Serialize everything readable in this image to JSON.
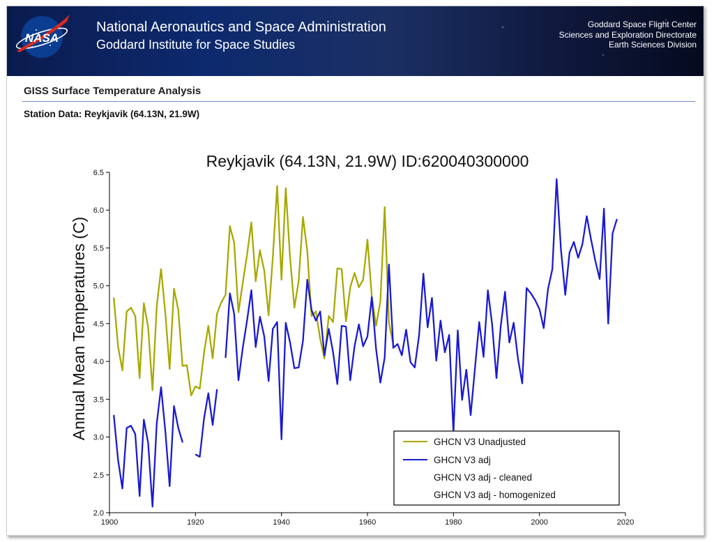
{
  "header": {
    "logo_text": "NASA",
    "org_line1": "National Aeronautics and Space Administration",
    "org_line2": "Goddard Institute for Space Studies",
    "right_line1": "Goddard Space Flight Center",
    "right_line2": "Sciences and Exploration Directorate",
    "right_line3": "Earth Sciences Division"
  },
  "page": {
    "heading": "GISS Surface Temperature Analysis",
    "subheading": "Station Data: Reykjavik (64.13N, 21.9W)"
  },
  "colors": {
    "banner": "#0d2a6e",
    "unadjusted": "#a8a800",
    "adj": "#1a1ad0",
    "rule": "#6f86c6"
  },
  "chart_data": {
    "type": "line",
    "title": "Reykjavik (64.13N, 21.9W) ID:620040300000",
    "xlabel": "",
    "ylabel": "Annual Mean Temperatures (C)",
    "xlim": [
      1900,
      2020
    ],
    "ylim": [
      2.0,
      6.5
    ],
    "x_ticks": [
      "1900",
      "1920",
      "1940",
      "1960",
      "1980",
      "2000",
      "2020"
    ],
    "y_ticks": [
      "2.0",
      "2.5",
      "3.0",
      "3.5",
      "4.0",
      "4.5",
      "5.0",
      "5.5",
      "6.0",
      "6.5"
    ],
    "legend_position": "bottom-right",
    "legend": [
      "GHCN V3 Unadjusted",
      "GHCN V3 adj",
      "GHCN V3 adj - cleaned",
      "GHCN V3 adj - homogenized"
    ],
    "series": [
      {
        "name": "GHCN V3 Unadjusted",
        "color": "#a8a800",
        "segments": [
          [
            [
              1901,
              4.84
            ],
            [
              1902,
              4.2
            ],
            [
              1903,
              3.88
            ],
            [
              1904,
              4.66
            ],
            [
              1905,
              4.71
            ],
            [
              1906,
              4.6
            ],
            [
              1907,
              3.78
            ],
            [
              1908,
              4.77
            ],
            [
              1909,
              4.45
            ],
            [
              1910,
              3.62
            ],
            [
              1911,
              4.73
            ],
            [
              1912,
              5.22
            ],
            [
              1913,
              4.63
            ],
            [
              1914,
              3.9
            ],
            [
              1915,
              4.96
            ],
            [
              1916,
              4.68
            ],
            [
              1917,
              3.94
            ],
            [
              1918,
              3.95
            ],
            [
              1919,
              3.55
            ],
            [
              1920,
              3.67
            ],
            [
              1921,
              3.64
            ],
            [
              1922,
              4.12
            ],
            [
              1923,
              4.47
            ],
            [
              1924,
              4.04
            ],
            [
              1925,
              4.63
            ],
            [
              1926,
              4.78
            ],
            [
              1927,
              4.88
            ],
            [
              1928,
              5.79
            ],
            [
              1929,
              5.57
            ],
            [
              1930,
              4.65
            ],
            [
              1931,
              5.04
            ],
            [
              1932,
              5.41
            ],
            [
              1933,
              5.84
            ],
            [
              1934,
              5.06
            ],
            [
              1935,
              5.47
            ],
            [
              1936,
              5.2
            ],
            [
              1937,
              4.61
            ],
            [
              1938,
              5.38
            ],
            [
              1939,
              6.32
            ],
            [
              1940,
              5.08
            ],
            [
              1941,
              6.29
            ],
            [
              1942,
              5.37
            ],
            [
              1943,
              4.71
            ],
            [
              1944,
              5.06
            ],
            [
              1945,
              5.91
            ],
            [
              1946,
              5.46
            ],
            [
              1947,
              4.6
            ],
            [
              1948,
              4.66
            ],
            [
              1949,
              4.3
            ],
            [
              1950,
              4.04
            ],
            [
              1951,
              4.6
            ],
            [
              1952,
              4.52
            ],
            [
              1953,
              5.23
            ],
            [
              1954,
              5.22
            ],
            [
              1955,
              4.53
            ],
            [
              1956,
              4.98
            ],
            [
              1957,
              5.17
            ],
            [
              1958,
              4.98
            ],
            [
              1959,
              5.08
            ],
            [
              1960,
              5.61
            ],
            [
              1961,
              4.86
            ],
            [
              1962,
              4.47
            ],
            [
              1963,
              4.79
            ],
            [
              1964,
              6.04
            ],
            [
              1965,
              4.51
            ],
            [
              1966,
              4.22
            ]
          ]
        ]
      },
      {
        "name": "GHCN V3 adj",
        "color": "#1a1ad0",
        "segments": [
          [
            [
              1901,
              3.29
            ],
            [
              1902,
              2.7
            ],
            [
              1903,
              2.32
            ],
            [
              1904,
              3.12
            ],
            [
              1905,
              3.15
            ],
            [
              1906,
              3.04
            ],
            [
              1907,
              2.22
            ],
            [
              1908,
              3.23
            ],
            [
              1909,
              2.92
            ],
            [
              1910,
              2.08
            ],
            [
              1911,
              3.18
            ],
            [
              1912,
              3.66
            ],
            [
              1913,
              3.07
            ],
            [
              1914,
              2.35
            ],
            [
              1915,
              3.41
            ],
            [
              1916,
              3.12
            ],
            [
              1917,
              2.93
            ]
          ],
          [
            [
              1920,
              2.77
            ],
            [
              1921,
              2.74
            ],
            [
              1922,
              3.25
            ],
            [
              1923,
              3.58
            ],
            [
              1924,
              3.16
            ],
            [
              1925,
              3.63
            ]
          ],
          [
            [
              1927,
              4.05
            ],
            [
              1928,
              4.9
            ],
            [
              1929,
              4.63
            ],
            [
              1930,
              3.75
            ],
            [
              1931,
              4.18
            ],
            [
              1932,
              4.54
            ],
            [
              1933,
              4.94
            ],
            [
              1934,
              4.19
            ],
            [
              1935,
              4.59
            ],
            [
              1936,
              4.33
            ],
            [
              1937,
              3.74
            ],
            [
              1938,
              4.43
            ],
            [
              1939,
              4.52
            ],
            [
              1940,
              2.97
            ],
            [
              1941,
              4.51
            ],
            [
              1942,
              4.25
            ],
            [
              1943,
              3.91
            ],
            [
              1944,
              3.92
            ],
            [
              1945,
              4.27
            ],
            [
              1946,
              5.08
            ],
            [
              1947,
              4.68
            ],
            [
              1948,
              4.54
            ],
            [
              1949,
              4.66
            ],
            [
              1950,
              4.08
            ],
            [
              1951,
              4.43
            ],
            [
              1952,
              4.12
            ],
            [
              1953,
              3.7
            ],
            [
              1954,
              4.47
            ],
            [
              1955,
              4.46
            ],
            [
              1956,
              3.75
            ],
            [
              1957,
              4.2
            ],
            [
              1958,
              4.49
            ],
            [
              1959,
              4.2
            ],
            [
              1960,
              4.33
            ],
            [
              1961,
              4.85
            ],
            [
              1962,
              4.17
            ],
            [
              1963,
              3.72
            ],
            [
              1964,
              4.05
            ],
            [
              1965,
              5.28
            ],
            [
              1966,
              4.18
            ],
            [
              1967,
              4.23
            ],
            [
              1968,
              4.08
            ],
            [
              1969,
              4.42
            ],
            [
              1970,
              3.99
            ],
            [
              1971,
              3.92
            ],
            [
              1972,
              4.34
            ],
            [
              1973,
              5.16
            ],
            [
              1974,
              4.45
            ],
            [
              1975,
              4.84
            ],
            [
              1976,
              4.01
            ],
            [
              1977,
              4.54
            ],
            [
              1978,
              4.12
            ],
            [
              1979,
              4.35
            ],
            [
              1980,
              3.06
            ],
            [
              1981,
              4.41
            ],
            [
              1982,
              3.49
            ],
            [
              1983,
              3.89
            ],
            [
              1984,
              3.29
            ],
            [
              1985,
              3.91
            ],
            [
              1986,
              4.52
            ],
            [
              1987,
              4.06
            ],
            [
              1988,
              4.94
            ],
            [
              1989,
              4.49
            ],
            [
              1990,
              3.78
            ],
            [
              1991,
              4.47
            ],
            [
              1992,
              4.92
            ],
            [
              1993,
              4.25
            ],
            [
              1994,
              4.51
            ],
            [
              1995,
              4.04
            ],
            [
              1996,
              3.71
            ],
            [
              1997,
              4.97
            ],
            [
              1998,
              4.9
            ],
            [
              1999,
              4.81
            ],
            [
              2000,
              4.69
            ],
            [
              2001,
              4.44
            ],
            [
              2002,
              4.96
            ],
            [
              2003,
              5.22
            ],
            [
              2004,
              6.41
            ],
            [
              2005,
              5.48
            ],
            [
              2006,
              4.88
            ],
            [
              2007,
              5.44
            ],
            [
              2008,
              5.58
            ],
            [
              2009,
              5.37
            ],
            [
              2010,
              5.55
            ],
            [
              2011,
              5.92
            ],
            [
              2012,
              5.61
            ],
            [
              2013,
              5.33
            ],
            [
              2014,
              5.09
            ],
            [
              2015,
              6.02
            ],
            [
              2016,
              4.5
            ],
            [
              2017,
              5.69
            ],
            [
              2018,
              5.88
            ]
          ]
        ]
      }
    ]
  }
}
